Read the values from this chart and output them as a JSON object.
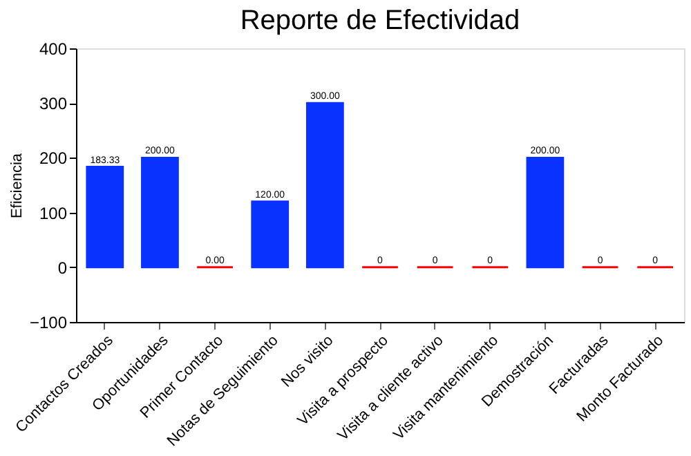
{
  "chart_data": {
    "type": "bar",
    "title": "Reporte de Efectividad",
    "ylabel": "Eficiencia",
    "categories": [
      "Contactos Creados",
      "Oportunidades",
      "Primer Contacto",
      "Notas de Seguimiento",
      "Nos visito",
      "Visita a prospecto",
      "Visita a cliente activo",
      "Visita mantenimiento",
      "Demostración",
      "Facturadas",
      "Monto Facturado"
    ],
    "values": [
      183.33,
      200,
      0,
      120,
      300,
      0,
      0,
      0,
      200,
      0,
      0
    ],
    "colors": [
      "#0a32ff",
      "#0a32ff",
      "#ff0000",
      "#0a32ff",
      "#0a32ff",
      "#ff0000",
      "#ff0000",
      "#ff0000",
      "#0a32ff",
      "#ff0000",
      "#ff0000"
    ],
    "value_labels": [
      "183.33",
      "200.00",
      "0.00",
      "120.00",
      "300.00",
      "0",
      "0",
      "0",
      "200.00",
      "0",
      "0"
    ],
    "ylim": [
      -100,
      400
    ],
    "yticks": [
      -100,
      0,
      100,
      200,
      300,
      400
    ],
    "grid": false
  }
}
